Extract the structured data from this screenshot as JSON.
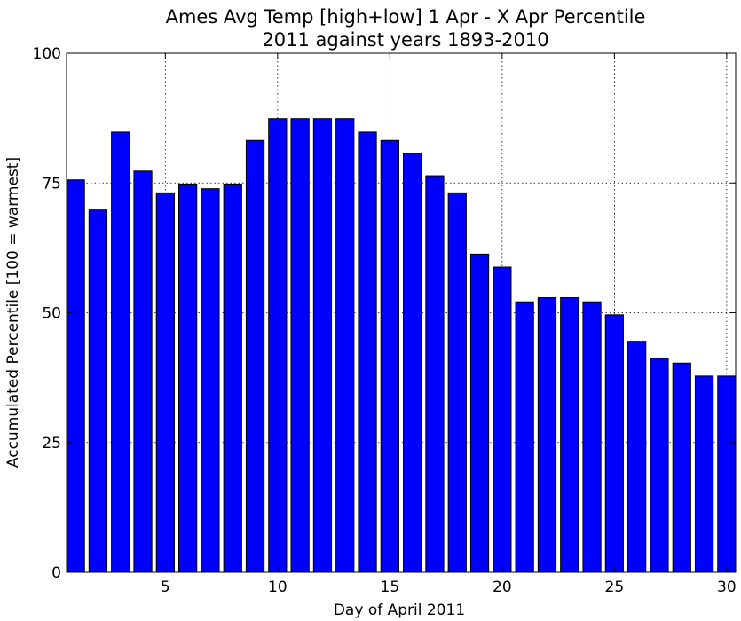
{
  "chart_data": {
    "type": "bar",
    "title": "Ames Avg Temp [high+low] 1 Apr - X Apr Percentile",
    "subtitle": "2011 against years 1893-2010",
    "xlabel": "Day of April 2011",
    "ylabel": "Accumulated Percentile [100 = warmest]",
    "x": [
      1,
      2,
      3,
      4,
      5,
      6,
      7,
      8,
      9,
      10,
      11,
      12,
      13,
      14,
      15,
      16,
      17,
      18,
      19,
      20,
      21,
      22,
      23,
      24,
      25,
      26,
      27,
      28,
      29,
      30
    ],
    "values": [
      75.6,
      69.8,
      84.8,
      77.3,
      73.1,
      74.8,
      73.9,
      74.8,
      83.2,
      87.4,
      87.4,
      87.4,
      87.4,
      84.8,
      83.2,
      80.7,
      76.4,
      73.1,
      61.3,
      58.8,
      52.1,
      52.9,
      52.9,
      52.1,
      49.6,
      44.5,
      41.2,
      40.3,
      37.8,
      37.8
    ],
    "xlim": [
      0.6,
      30.4
    ],
    "ylim": [
      0,
      100
    ],
    "xticks": [
      5,
      10,
      15,
      20,
      25,
      30
    ],
    "yticks": [
      0,
      25,
      50,
      75,
      100
    ],
    "grid": true,
    "bar_color": "#0000ff",
    "edge_color": "#000000"
  }
}
